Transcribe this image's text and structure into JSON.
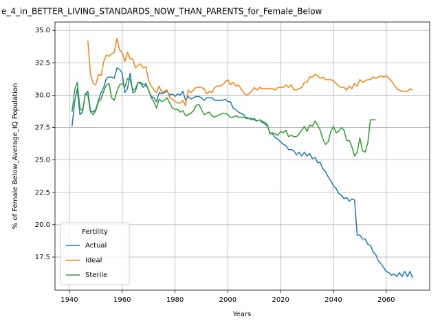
{
  "chart_data": {
    "type": "line",
    "title": "e_4_in_BETTER_LIVING_STANDARDS_NOW_THAN_PARENTS_for_Female_Below",
    "x_label": "Years",
    "y_label": "% of Female Below_Average_IQ Population",
    "x": [
      1941,
      1942,
      1943,
      1944,
      1945,
      1946,
      1947,
      1948,
      1949,
      1950,
      1951,
      1952,
      1953,
      1954,
      1955,
      1956,
      1957,
      1958,
      1959,
      1960,
      1961,
      1962,
      1963,
      1964,
      1965,
      1966,
      1967,
      1968,
      1969,
      1970,
      1971,
      1972,
      1973,
      1974,
      1975,
      1976,
      1977,
      1978,
      1979,
      1980,
      1981,
      1982,
      1983,
      1984,
      1985,
      1986,
      1987,
      1988,
      1989,
      1990,
      1991,
      1992,
      1993,
      1994,
      1995,
      1996,
      1997,
      1998,
      1999,
      2000,
      2001,
      2002,
      2003,
      2004,
      2005,
      2006,
      2007,
      2008,
      2009,
      2010,
      2011,
      2012,
      2013,
      2014,
      2015,
      2016,
      2017,
      2018,
      2019,
      2020,
      2021,
      2022,
      2023,
      2024,
      2025,
      2026,
      2027,
      2028,
      2029,
      2030,
      2031,
      2032,
      2033,
      2034,
      2035,
      2036,
      2037,
      2038,
      2039,
      2040,
      2041,
      2042,
      2043,
      2044,
      2045,
      2046,
      2047,
      2048,
      2049,
      2050,
      2051,
      2052,
      2053,
      2054,
      2055,
      2056,
      2057,
      2058,
      2059,
      2060,
      2061,
      2062,
      2063,
      2064,
      2065,
      2066,
      2067,
      2068,
      2069,
      2070
    ],
    "series": [
      {
        "name": "Actual",
        "color": "#1f77b4",
        "values": [
          27.6,
          29.5,
          30.5,
          28.5,
          28.7,
          30.1,
          30.3,
          28.8,
          28.7,
          28.9,
          29.6,
          30.2,
          30.6,
          31.3,
          31.4,
          31.4,
          31.3,
          32.1,
          32.0,
          31.7,
          30.2,
          30.5,
          31.7,
          30.2,
          30.3,
          31.0,
          30.9,
          30.6,
          30.8,
          30.4,
          29.9,
          29.8,
          29.5,
          30.2,
          30.1,
          30.2,
          30.3,
          30.0,
          30.1,
          29.9,
          30.1,
          30.0,
          30.3,
          29.6,
          29.9,
          29.7,
          29.8,
          29.9,
          29.9,
          29.8,
          29.6,
          29.8,
          29.8,
          29.8,
          29.6,
          29.6,
          29.6,
          29.6,
          29.7,
          29.5,
          29.5,
          29.0,
          28.9,
          28.7,
          28.6,
          28.5,
          28.2,
          28.2,
          28.1,
          28.2,
          28.0,
          28.1,
          27.9,
          27.8,
          27.6,
          27.1,
          27.0,
          26.7,
          26.6,
          26.4,
          26.2,
          26.1,
          25.8,
          25.8,
          25.7,
          25.4,
          25.6,
          25.3,
          25.6,
          25.3,
          25.5,
          25.1,
          25.2,
          24.8,
          24.8,
          24.3,
          24.1,
          23.7,
          23.4,
          23.0,
          22.8,
          22.4,
          22.3,
          22.0,
          22.1,
          21.8,
          22.0,
          21.9,
          19.2,
          19.2,
          18.9,
          18.9,
          18.5,
          18.4,
          17.9,
          17.7,
          17.2,
          17.0,
          16.7,
          16.4,
          16.3,
          16.1,
          16.2,
          16.0,
          16.3,
          16.0,
          16.4,
          16.0,
          16.4,
          15.9
        ]
      },
      {
        "name": "Ideal",
        "color": "#ff7f0e",
        "values": [
          null,
          null,
          null,
          null,
          null,
          null,
          34.2,
          31.6,
          30.9,
          30.8,
          31.6,
          31.5,
          32.6,
          33.1,
          33.0,
          33.2,
          33.3,
          34.4,
          33.5,
          33.3,
          32.6,
          33.3,
          32.8,
          32.8,
          32.1,
          32.3,
          32.4,
          32.1,
          32.2,
          31.1,
          30.7,
          30.4,
          30.2,
          30.7,
          30.2,
          30.3,
          30.4,
          29.8,
          29.7,
          29.5,
          29.4,
          29.4,
          29.6,
          29.2,
          30.4,
          30.2,
          30.4,
          30.6,
          30.6,
          30.6,
          30.5,
          30.1,
          30.3,
          30.2,
          30.6,
          30.7,
          30.7,
          30.8,
          31.0,
          31.2,
          30.8,
          31.0,
          30.7,
          30.8,
          30.5,
          30.2,
          30.0,
          30.1,
          30.3,
          30.6,
          30.4,
          30.6,
          30.5,
          30.5,
          30.5,
          30.5,
          30.5,
          30.4,
          30.6,
          30.6,
          30.6,
          30.8,
          30.6,
          30.8,
          30.4,
          30.4,
          30.5,
          30.6,
          31.0,
          31.0,
          31.4,
          31.4,
          31.6,
          31.5,
          31.3,
          31.4,
          31.2,
          31.2,
          31.2,
          31.1,
          30.9,
          30.7,
          30.6,
          30.6,
          30.4,
          30.7,
          30.5,
          30.9,
          30.7,
          31.2,
          31.0,
          31.1,
          31.2,
          31.2,
          31.4,
          31.3,
          31.4,
          31.5,
          31.4,
          31.5,
          31.3,
          31.1,
          30.8,
          30.5,
          30.4,
          30.3,
          30.3,
          30.3,
          30.5,
          30.4
        ]
      },
      {
        "name": "Sterile",
        "color": "#2ca02c",
        "values": [
          28.7,
          30.4,
          31.0,
          29.0,
          28.8,
          30.1,
          30.0,
          28.7,
          28.5,
          28.8,
          29.5,
          29.7,
          30.3,
          30.8,
          30.9,
          29.8,
          29.6,
          30.3,
          30.8,
          30.9,
          30.6,
          31.3,
          31.2,
          30.4,
          30.5,
          31.0,
          31.0,
          30.8,
          30.9,
          30.4,
          29.8,
          29.5,
          29.0,
          29.7,
          29.5,
          29.6,
          29.8,
          29.4,
          29.0,
          28.9,
          28.9,
          28.7,
          28.8,
          28.4,
          28.5,
          28.6,
          28.8,
          29.2,
          29.3,
          28.9,
          28.5,
          28.6,
          28.7,
          28.4,
          28.3,
          28.4,
          28.5,
          28.6,
          28.6,
          28.5,
          28.3,
          28.3,
          28.4,
          28.3,
          28.3,
          28.3,
          28.3,
          28.2,
          28.2,
          28.1,
          28.0,
          28.1,
          28.0,
          27.9,
          27.7,
          27.0,
          27.1,
          27.0,
          26.9,
          27.2,
          27.1,
          27.3,
          26.8,
          26.9,
          26.8,
          26.8,
          27.0,
          27.3,
          27.6,
          27.2,
          27.7,
          27.6,
          28.0,
          27.7,
          27.3,
          26.6,
          26.2,
          26.4,
          27.2,
          27.6,
          27.1,
          27.2,
          27.5,
          27.3,
          26.5,
          26.5,
          26.0,
          25.3,
          25.6,
          26.7,
          25.7,
          25.6,
          26.3,
          28.1,
          28.1,
          28.1,
          null,
          null,
          null,
          null,
          null,
          null,
          null,
          null,
          null,
          null,
          null,
          null,
          null,
          null
        ]
      }
    ],
    "xlim": [
      1934.55,
      2076.45
    ],
    "ylim": [
      14.95,
      35.65
    ],
    "xticks": [
      1940,
      1960,
      1980,
      2000,
      2020,
      2040,
      2060
    ],
    "yticks": [
      17.5,
      {
        "value": 20,
        "label": "20.0"
      },
      22.5,
      {
        "value": 25,
        "label": "25.0"
      },
      27.5,
      {
        "value": 30,
        "label": "30.0"
      },
      32.5,
      {
        "value": 35,
        "label": "35.0"
      }
    ],
    "grid": true,
    "legend_title": "Fertility",
    "legend_position": "lower left"
  }
}
